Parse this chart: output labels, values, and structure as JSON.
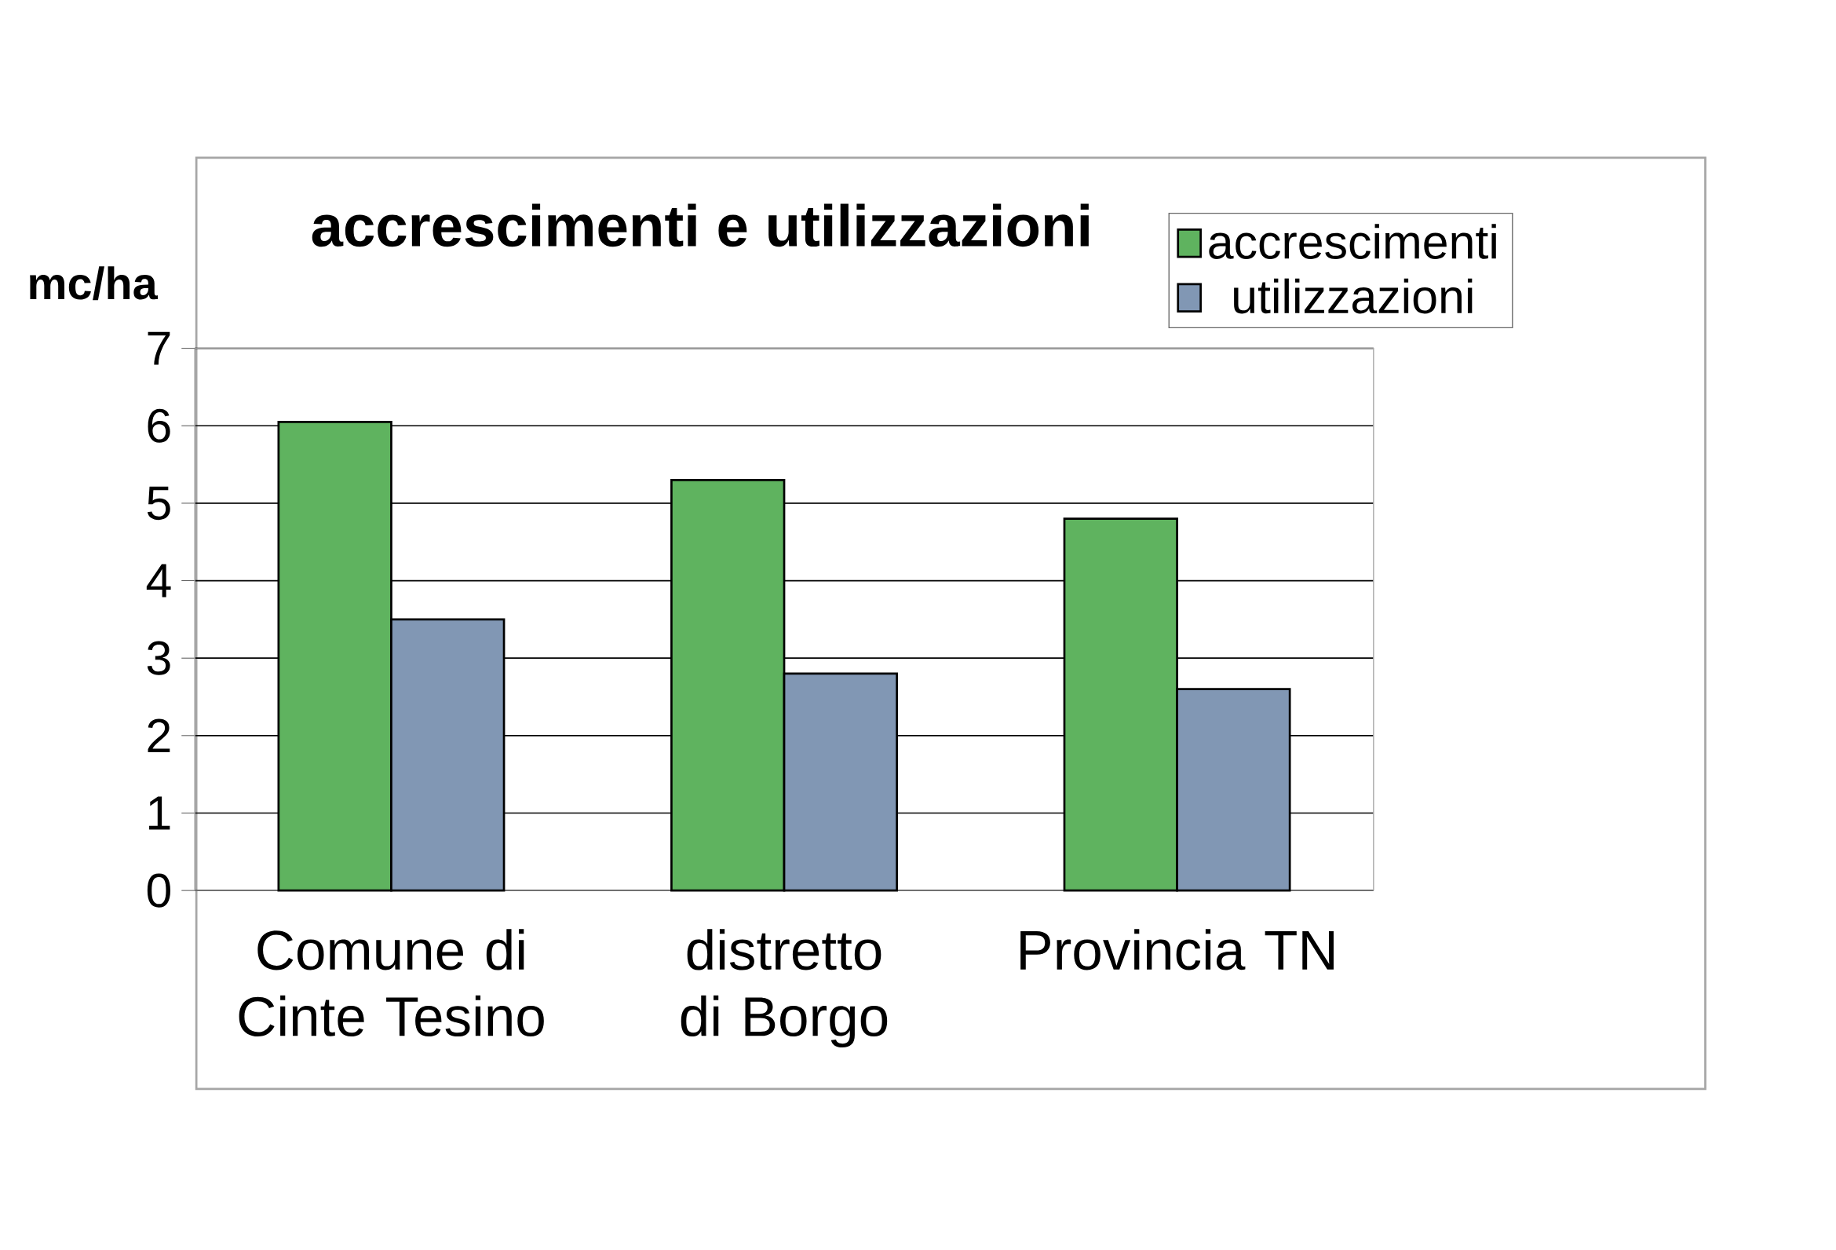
{
  "chart_data": {
    "type": "bar",
    "title": "accrescimenti e utilizzazioni",
    "ylabel": "mc/ha",
    "categories": [
      "Comune di Cinte Tesino",
      "distretto di Borgo",
      "Provincia TN"
    ],
    "series": [
      {
        "name": "accrescimenti",
        "color": "#5fb35f",
        "values": [
          6.05,
          5.3,
          4.8
        ]
      },
      {
        "name": "utilizzazioni",
        "color": "#8197b4",
        "values": [
          3.5,
          2.8,
          2.6
        ]
      }
    ],
    "ylim": [
      0,
      7
    ],
    "yticks": [
      0,
      1,
      2,
      3,
      4,
      5,
      6,
      7
    ],
    "grid": "y",
    "legend": "top right"
  }
}
